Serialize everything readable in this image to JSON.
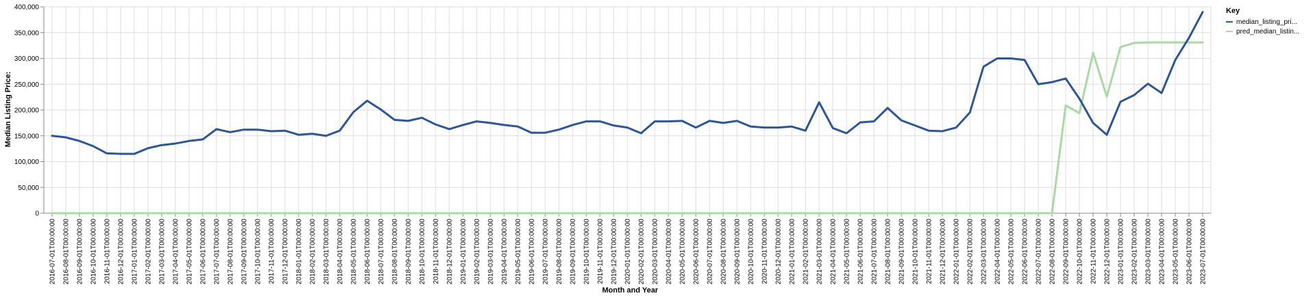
{
  "chart_data": {
    "type": "line",
    "xlabel": "Month and Year",
    "ylabel": "Median Listing Price:",
    "ylim": [
      0,
      400000
    ],
    "yticks": [
      "0",
      "50,000",
      "100,000",
      "150,000",
      "200,000",
      "250,000",
      "300,000",
      "350,000",
      "400,000"
    ],
    "grid": true,
    "legend": {
      "title": "Key",
      "placement": "right"
    },
    "colors": {
      "median": "#2a56a0",
      "pred": "#a7dba0"
    },
    "x": [
      "2016-07-01T00:00:00",
      "2016-08-01T00:00:00",
      "2016-09-01T00:00:00",
      "2016-10-01T00:00:00",
      "2016-11-01T00:00:00",
      "2016-12-01T00:00:00",
      "2017-01-01T00:00:00",
      "2017-02-01T00:00:00",
      "2017-03-01T00:00:00",
      "2017-04-01T00:00:00",
      "2017-05-01T00:00:00",
      "2017-06-01T00:00:00",
      "2017-07-01T00:00:00",
      "2017-08-01T00:00:00",
      "2017-09-01T00:00:00",
      "2017-10-01T00:00:00",
      "2017-11-01T00:00:00",
      "2017-12-01T00:00:00",
      "2018-01-01T00:00:00",
      "2018-02-01T00:00:00",
      "2018-03-01T00:00:00",
      "2018-04-01T00:00:00",
      "2018-05-01T00:00:00",
      "2018-06-01T00:00:00",
      "2018-07-01T00:00:00",
      "2018-08-01T00:00:00",
      "2018-09-01T00:00:00",
      "2018-10-01T00:00:00",
      "2018-11-01T00:00:00",
      "2018-12-01T00:00:00",
      "2019-01-01T00:00:00",
      "2019-02-01T00:00:00",
      "2019-03-01T00:00:00",
      "2019-04-01T00:00:00",
      "2019-05-01T00:00:00",
      "2019-06-01T00:00:00",
      "2019-07-01T00:00:00",
      "2019-08-01T00:00:00",
      "2019-09-01T00:00:00",
      "2019-10-01T00:00:00",
      "2019-11-01T00:00:00",
      "2019-12-01T00:00:00",
      "2020-01-01T00:00:00",
      "2020-02-01T00:00:00",
      "2020-03-01T00:00:00",
      "2020-04-01T00:00:00",
      "2020-05-01T00:00:00",
      "2020-06-01T00:00:00",
      "2020-07-01T00:00:00",
      "2020-08-01T00:00:00",
      "2020-09-01T00:00:00",
      "2020-10-01T00:00:00",
      "2020-11-01T00:00:00",
      "2020-12-01T00:00:00",
      "2021-01-01T00:00:00",
      "2021-02-01T00:00:00",
      "2021-03-01T00:00:00",
      "2021-04-01T00:00:00",
      "2021-05-01T00:00:00",
      "2021-06-01T00:00:00",
      "2021-07-01T00:00:00",
      "2021-08-01T00:00:00",
      "2021-09-01T00:00:00",
      "2021-10-01T00:00:00",
      "2021-11-01T00:00:00",
      "2021-12-01T00:00:00",
      "2022-01-01T00:00:00",
      "2022-02-01T00:00:00",
      "2022-03-01T00:00:00",
      "2022-04-01T00:00:00",
      "2022-05-01T00:00:00",
      "2022-06-01T00:00:00",
      "2022-07-01T00:00:00",
      "2022-08-01T00:00:00",
      "2022-09-01T00:00:00",
      "2022-10-01T00:00:00",
      "2022-11-01T00:00:00",
      "2022-12-01T00:00:00",
      "2023-01-01T00:00:00",
      "2023-02-01T00:00:00",
      "2023-03-01T00:00:00",
      "2023-04-01T00:00:00",
      "2023-05-01T00:00:00",
      "2023-06-01T00:00:00",
      "2023-07-01T00:00:00"
    ],
    "series": [
      {
        "name": "median_listing_pri...",
        "color": "#2a56a0",
        "values": [
          150000,
          147000,
          140000,
          130000,
          116000,
          115000,
          115000,
          126000,
          132000,
          135000,
          140000,
          143000,
          163000,
          157000,
          162000,
          162000,
          159000,
          160000,
          152000,
          154000,
          150000,
          160000,
          196000,
          218000,
          201000,
          181000,
          179000,
          185000,
          172000,
          163000,
          171000,
          178000,
          175000,
          171000,
          168000,
          156000,
          156000,
          162000,
          171000,
          178000,
          178000,
          170000,
          166000,
          155000,
          178000,
          178000,
          179000,
          166000,
          179000,
          175000,
          179000,
          168000,
          166000,
          166000,
          168000,
          160000,
          215000,
          165000,
          155000,
          176000,
          178000,
          204000,
          180000,
          170000,
          160000,
          159000,
          166000,
          195000,
          284000,
          300000,
          300000,
          297000,
          250000,
          254000,
          261000,
          222000,
          175000,
          152000,
          216000,
          229000,
          251000,
          233000,
          297000,
          340000,
          390000
        ]
      },
      {
        "name": "pred_median_listin...",
        "color": "#a7dba0",
        "values": [
          0,
          0,
          0,
          0,
          0,
          0,
          0,
          0,
          0,
          0,
          0,
          0,
          0,
          0,
          0,
          0,
          0,
          0,
          0,
          0,
          0,
          0,
          0,
          0,
          0,
          0,
          0,
          0,
          0,
          0,
          0,
          0,
          0,
          0,
          0,
          0,
          0,
          0,
          0,
          0,
          0,
          0,
          0,
          0,
          0,
          0,
          0,
          0,
          0,
          0,
          0,
          0,
          0,
          0,
          0,
          0,
          0,
          0,
          0,
          0,
          0,
          0,
          0,
          0,
          0,
          0,
          0,
          0,
          0,
          0,
          0,
          0,
          0,
          0,
          209000,
          194000,
          311000,
          226000,
          322000,
          330000,
          331000,
          331000,
          331000,
          331000,
          331000
        ]
      }
    ]
  }
}
